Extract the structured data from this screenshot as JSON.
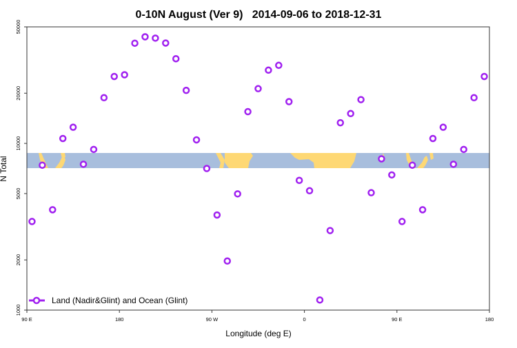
{
  "chart_data": {
    "type": "scatter",
    "title": "0-10N August (Ver 9)   2014-09-06 to 2018-12-31",
    "xlabel": "Longitude (deg E)",
    "ylabel": "N Total",
    "y_scale": "log",
    "ylim": [
      1000,
      50000
    ],
    "xlim_deg_e": [
      90,
      180
    ],
    "x_tick_labels": [
      "90 E",
      "180",
      "90 W",
      "0",
      "90 E",
      "180"
    ],
    "y_tick_labels": [
      "1000",
      "2000",
      "5000",
      "10000",
      "20000",
      "50000"
    ],
    "y_tick_values": [
      1000,
      2000,
      5000,
      10000,
      20000,
      50000
    ],
    "grid": false,
    "legend_placement": "bottom-left",
    "series": [
      {
        "name": "Land (Nadir&Glint) and Ocean (Glint)",
        "color": "#a020f0",
        "marker": "open-circle",
        "longitude": [
          95,
          105,
          115,
          125,
          135,
          145,
          155,
          165,
          175,
          -175,
          -165,
          -155,
          -145,
          -135,
          -125,
          -115,
          -105,
          -95,
          -85,
          -75,
          -65,
          -55,
          -45,
          -35,
          -25,
          -15,
          -5,
          5,
          15,
          25,
          35,
          45,
          55,
          65,
          75,
          85,
          95,
          105,
          115,
          125,
          135,
          145,
          155,
          165,
          175
        ],
        "values": [
          3400,
          7400,
          4000,
          10700,
          12500,
          7500,
          9200,
          18800,
          25200,
          25800,
          39900,
          43600,
          42800,
          40000,
          32200,
          20800,
          10500,
          7070,
          3720,
          1970,
          4980,
          15500,
          21300,
          27500,
          29400,
          17800,
          6000,
          5200,
          1150,
          3000,
          13300,
          15100,
          18300,
          5060,
          8080,
          6470,
          3400,
          7400,
          4000,
          10700,
          12500,
          7500,
          9200,
          18800,
          25200
        ]
      }
    ],
    "background_map": {
      "latitude_band": "0-10N",
      "ocean_color": "#a8bedd",
      "land_color": "#fed874"
    }
  }
}
